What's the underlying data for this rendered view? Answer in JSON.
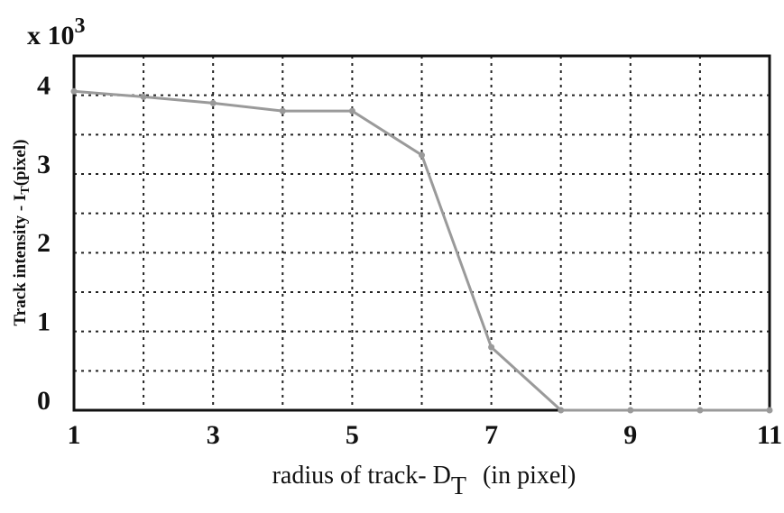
{
  "chart_data": {
    "type": "line",
    "multiplier": "x 10",
    "multiplier_sup": "3",
    "ylabel": "Track intensity - I",
    "ylabel_sub": "T",
    "ylabel_end": "(pixel)",
    "xlabel": "radius of track- D",
    "xlabel_sub": "T",
    "xlabel_end": "(in pixel)",
    "x": [
      1,
      2,
      3,
      4,
      5,
      6,
      7,
      8,
      9,
      10,
      11
    ],
    "series": [
      {
        "color": "#9a9a9a",
        "values": [
          4.05,
          3.98,
          3.9,
          3.8,
          3.8,
          3.24,
          0.8,
          0,
          0,
          0,
          0
        ]
      }
    ],
    "xlim": [
      1,
      11
    ],
    "xticks": [
      1,
      3,
      5,
      7,
      9,
      11
    ],
    "minor_xticks": [
      2,
      4,
      6,
      8,
      10
    ],
    "ylim": [
      0,
      4.5
    ],
    "yticks": [
      0,
      1,
      2,
      3,
      4
    ],
    "minor_yticks": [
      0.5,
      1.5,
      2.5,
      3.5
    ],
    "grid": true
  }
}
